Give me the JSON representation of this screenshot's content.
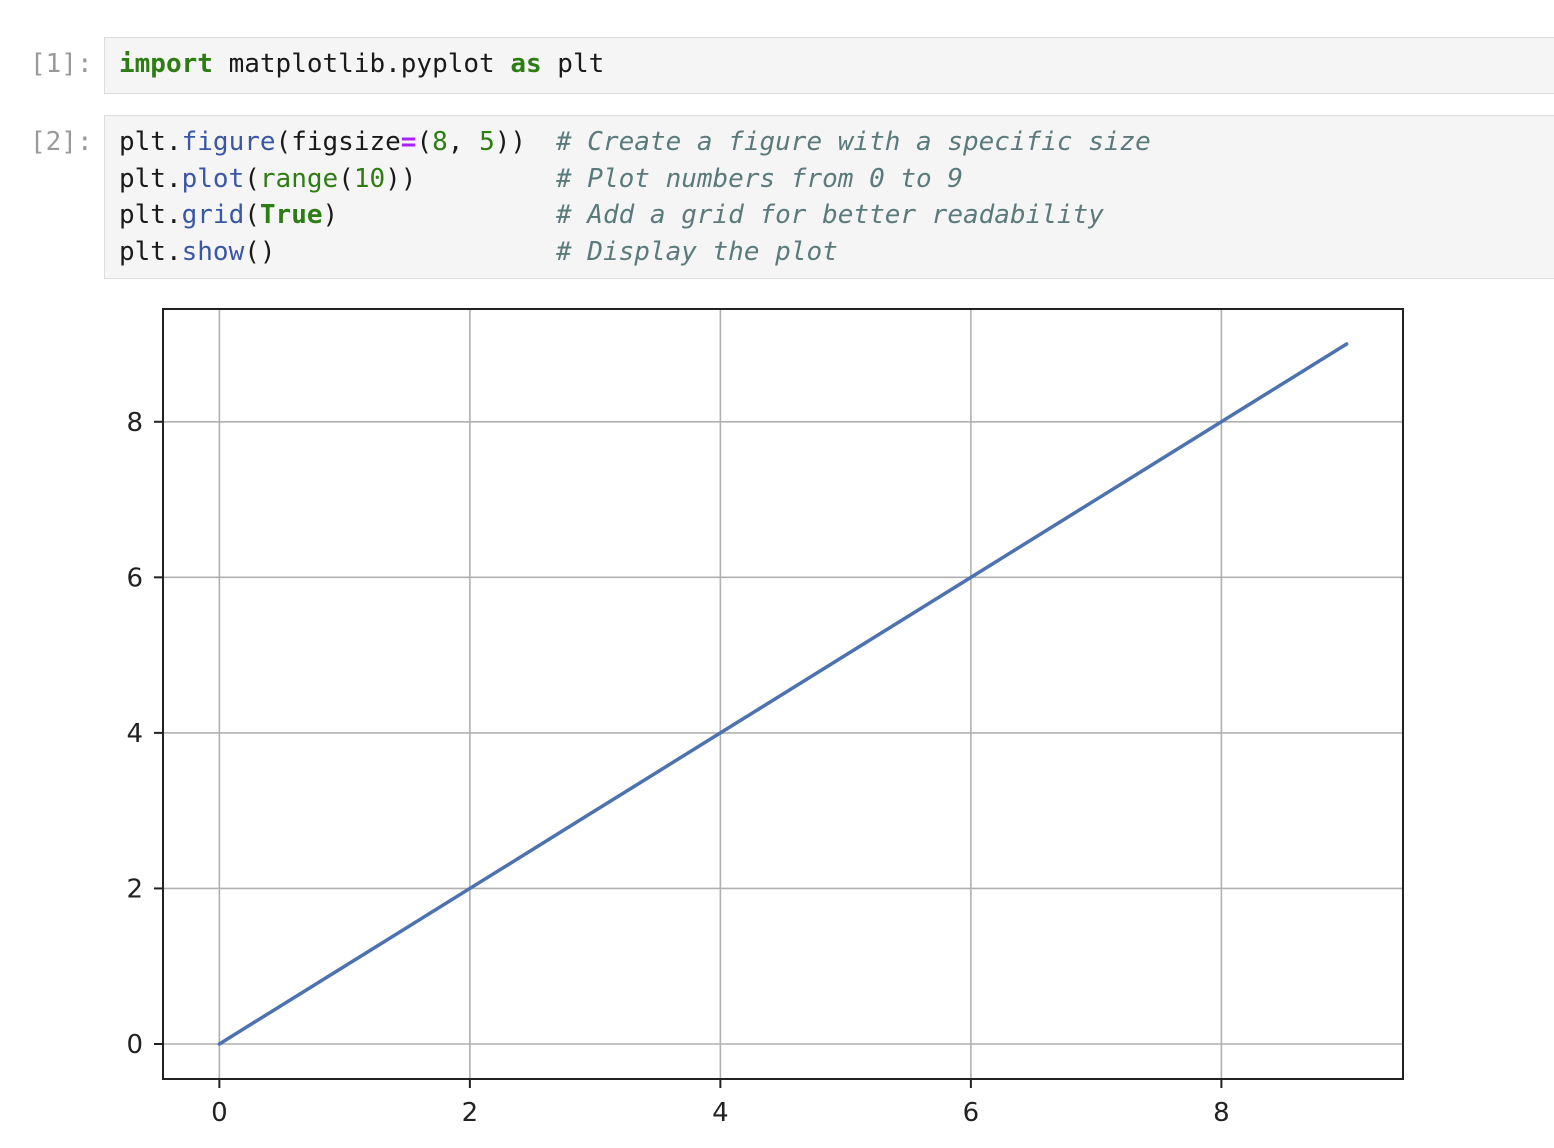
{
  "cells": [
    {
      "prompt": "[1]:",
      "lines": [
        {
          "tokens": [
            {
              "t": "import",
              "c": "kw"
            },
            {
              "t": " matplotlib.pyplot ",
              "c": ""
            },
            {
              "t": "as",
              "c": "kw"
            },
            {
              "t": " plt",
              "c": ""
            }
          ],
          "comment": ""
        }
      ]
    },
    {
      "prompt": "[2]:",
      "lines": [
        {
          "tokens": [
            {
              "t": "plt.",
              "c": ""
            },
            {
              "t": "figure",
              "c": "fn"
            },
            {
              "t": "(figsize",
              "c": ""
            },
            {
              "t": "=",
              "c": "op"
            },
            {
              "t": "(",
              "c": ""
            },
            {
              "t": "8",
              "c": "num"
            },
            {
              "t": ", ",
              "c": ""
            },
            {
              "t": "5",
              "c": "num"
            },
            {
              "t": "))",
              "c": ""
            }
          ],
          "comment": "# Create a figure with a specific size"
        },
        {
          "tokens": [
            {
              "t": "plt.",
              "c": ""
            },
            {
              "t": "plot",
              "c": "fn"
            },
            {
              "t": "(",
              "c": ""
            },
            {
              "t": "range",
              "c": "bi"
            },
            {
              "t": "(",
              "c": ""
            },
            {
              "t": "10",
              "c": "num"
            },
            {
              "t": "))",
              "c": ""
            }
          ],
          "comment": "# Plot numbers from 0 to 9"
        },
        {
          "tokens": [
            {
              "t": "plt.",
              "c": ""
            },
            {
              "t": "grid",
              "c": "fn"
            },
            {
              "t": "(",
              "c": ""
            },
            {
              "t": "True",
              "c": "kw"
            },
            {
              "t": ")",
              "c": ""
            }
          ],
          "comment": "# Add a grid for better readability"
        },
        {
          "tokens": [
            {
              "t": "plt.",
              "c": ""
            },
            {
              "t": "show",
              "c": "fn"
            },
            {
              "t": "()",
              "c": ""
            }
          ],
          "comment": "# Display the plot"
        }
      ]
    }
  ],
  "chart_data": {
    "type": "line",
    "x": [
      0,
      1,
      2,
      3,
      4,
      5,
      6,
      7,
      8,
      9
    ],
    "series": [
      {
        "values": [
          0,
          1,
          2,
          3,
          4,
          5,
          6,
          7,
          8,
          9
        ],
        "color": "#4c72b0"
      }
    ],
    "xticks": [
      0,
      2,
      4,
      6,
      8
    ],
    "yticks": [
      0,
      2,
      4,
      6,
      8
    ],
    "xlim": [
      -0.45,
      9.45
    ],
    "ylim": [
      -0.45,
      9.45
    ],
    "grid": true,
    "title": "",
    "xlabel": "",
    "ylabel": ""
  }
}
